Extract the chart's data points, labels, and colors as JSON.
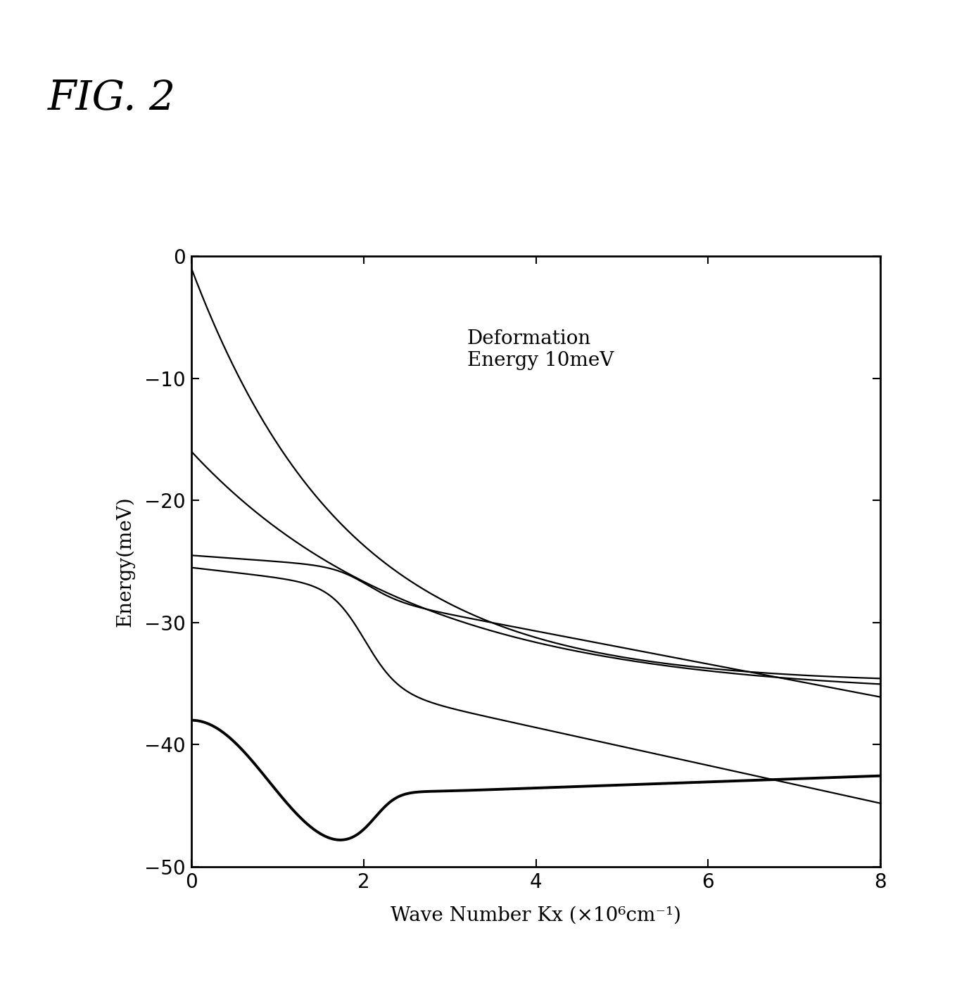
{
  "title": "FIG. 2",
  "annotation": "Deformation\nEnergy 10meV",
  "xlabel": "Wave Number Kx (×10⁶cm⁻¹)",
  "ylabel": "Energy(meV)",
  "xlim": [
    0,
    8
  ],
  "ylim": [
    -50,
    0
  ],
  "xticks": [
    0,
    2,
    4,
    6,
    8
  ],
  "yticks": [
    0,
    -10,
    -20,
    -30,
    -40,
    -50
  ],
  "background_color": "#ffffff",
  "line_color": "#000000",
  "curve_linewidth_thin": 1.6,
  "curve_linewidth_thick": 2.8,
  "annotation_fontsize": 20,
  "axis_label_fontsize": 20,
  "tick_fontsize": 20,
  "title_fontsize": 42
}
